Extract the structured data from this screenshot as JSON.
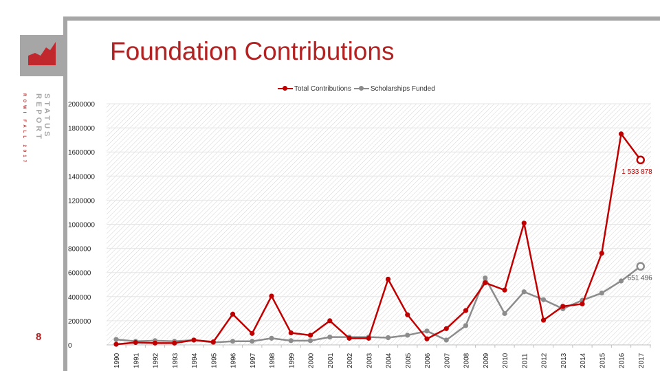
{
  "slide": {
    "title_part1": "Foundation",
    "title_part2": " Contributions",
    "side_label_main": "STATUS REPORT",
    "side_label_sub": "ROWI FALL 2017",
    "page_number": "8"
  },
  "colors": {
    "total": "#c00000",
    "scholar": "#8c8c8c",
    "frame": "#a6a6a6"
  },
  "chart_data": {
    "type": "line",
    "title": "",
    "xlabel": "",
    "ylabel": "",
    "ylim": [
      0,
      2000000
    ],
    "yticks": [
      0,
      200000,
      400000,
      600000,
      800000,
      1000000,
      1200000,
      1400000,
      1600000,
      1800000,
      2000000
    ],
    "legend_position": "top",
    "grid": "diagonal-hatch",
    "x": [
      "1990",
      "1991",
      "1992",
      "1993",
      "1994",
      "1995",
      "1996",
      "1997",
      "1998",
      "1999",
      "2000",
      "2001",
      "2002",
      "2003",
      "2004",
      "2005",
      "2006",
      "2007",
      "2008",
      "2009",
      "2010",
      "2011",
      "2012",
      "2013",
      "2014",
      "2015",
      "2016",
      "2017"
    ],
    "series": [
      {
        "name": "Total Contributions",
        "color": "#c00000",
        "values": [
          5000,
          20000,
          15000,
          15000,
          40000,
          25000,
          255000,
          95000,
          405000,
          100000,
          80000,
          200000,
          55000,
          55000,
          545000,
          250000,
          50000,
          135000,
          285000,
          515000,
          455000,
          1010000,
          205000,
          320000,
          340000,
          760000,
          1750000,
          1533878
        ]
      },
      {
        "name": "Scholarships Funded",
        "color": "#8c8c8c",
        "values": [
          45000,
          30000,
          35000,
          30000,
          40000,
          20000,
          30000,
          30000,
          55000,
          35000,
          35000,
          65000,
          65000,
          65000,
          60000,
          80000,
          115000,
          40000,
          160000,
          555000,
          260000,
          440000,
          375000,
          300000,
          370000,
          430000,
          530000,
          651496
        ]
      }
    ],
    "annotations": [
      {
        "series": 0,
        "index": 27,
        "text": "1 533 878"
      },
      {
        "series": 1,
        "index": 27,
        "text": "651 496"
      }
    ]
  }
}
